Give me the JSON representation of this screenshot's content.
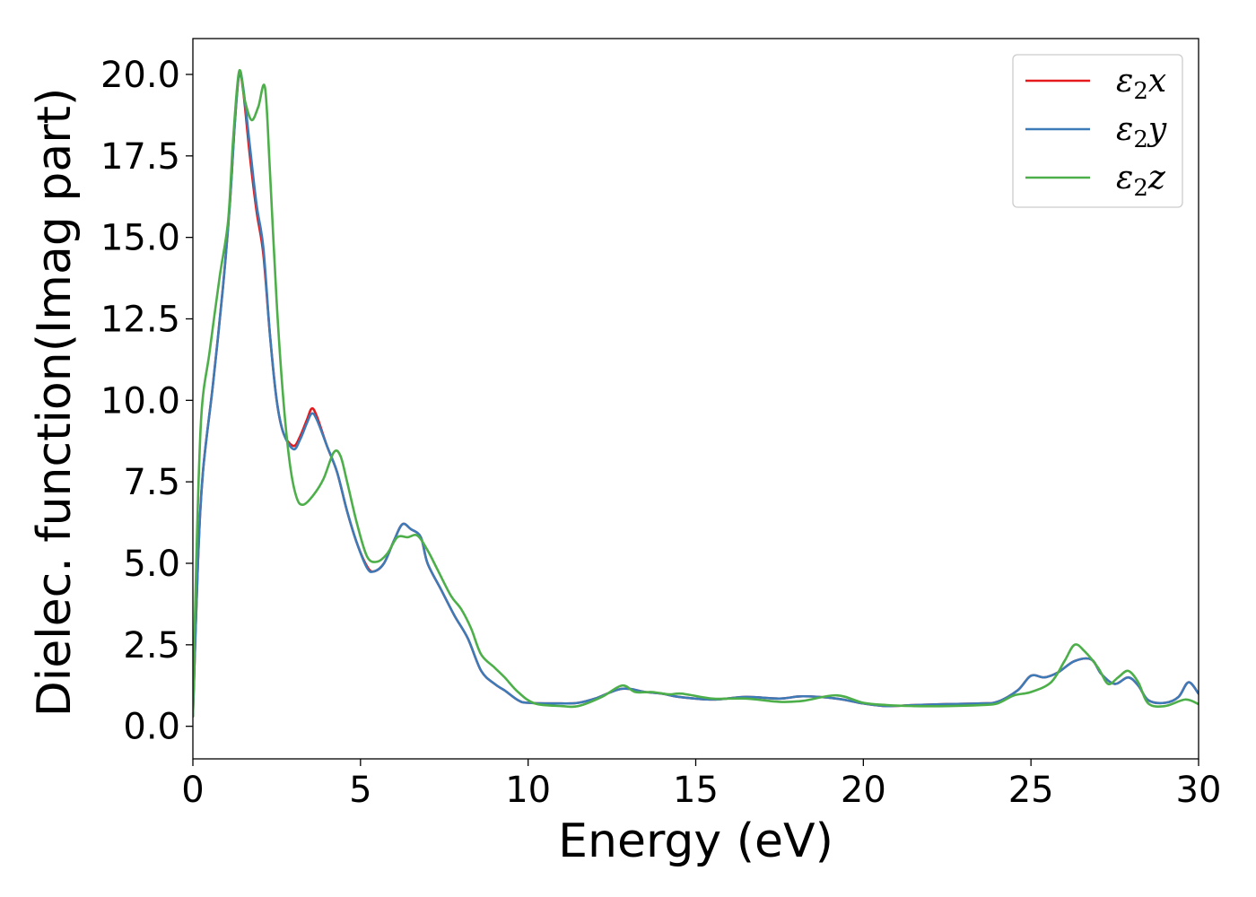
{
  "chart_data": {
    "type": "line",
    "xlabel": "Energy (eV)",
    "ylabel": "Dielec. function(Imag part)",
    "xlim": [
      0,
      30
    ],
    "ylim": [
      -1,
      21.1
    ],
    "xticks": [
      0,
      5,
      10,
      15,
      20,
      25,
      30
    ],
    "xtick_labels": [
      "0",
      "5",
      "10",
      "15",
      "20",
      "25",
      "30"
    ],
    "yticks": [
      0,
      2.5,
      5,
      7.5,
      10,
      12.5,
      15,
      17.5,
      20
    ],
    "ytick_labels": [
      "0.0",
      "2.5",
      "5.0",
      "7.5",
      "10.0",
      "12.5",
      "15.0",
      "17.5",
      "20.0"
    ],
    "grid": false,
    "legend_position": "top-right",
    "series": [
      {
        "name": "ε₂x",
        "legend_base": "ε",
        "legend_sub": "2",
        "legend_var": "x",
        "color": "#e41a1c",
        "points": [
          [
            0,
            0.3
          ],
          [
            0.15,
            5
          ],
          [
            0.3,
            7.8
          ],
          [
            0.6,
            10.5
          ],
          [
            0.9,
            13.5
          ],
          [
            1.1,
            16
          ],
          [
            1.25,
            18.5
          ],
          [
            1.38,
            20
          ],
          [
            1.5,
            19.5
          ],
          [
            1.7,
            17.5
          ],
          [
            1.9,
            15.8
          ],
          [
            2.1,
            14.5
          ],
          [
            2.3,
            12
          ],
          [
            2.5,
            10
          ],
          [
            2.7,
            9
          ],
          [
            3.0,
            8.6
          ],
          [
            3.2,
            8.9
          ],
          [
            3.4,
            9.4
          ],
          [
            3.55,
            9.75
          ],
          [
            3.7,
            9.5
          ],
          [
            4.0,
            8.6
          ],
          [
            4.3,
            7.8
          ],
          [
            4.6,
            6.6
          ],
          [
            4.9,
            5.6
          ],
          [
            5.2,
            4.9
          ],
          [
            5.4,
            4.75
          ],
          [
            5.7,
            5.0
          ],
          [
            6.0,
            5.7
          ],
          [
            6.25,
            6.2
          ],
          [
            6.5,
            6.05
          ],
          [
            6.8,
            5.8
          ],
          [
            7.0,
            5.0
          ],
          [
            7.4,
            4.2
          ],
          [
            7.8,
            3.4
          ],
          [
            8.2,
            2.7
          ],
          [
            8.6,
            1.7
          ],
          [
            9.0,
            1.3
          ],
          [
            9.3,
            1.1
          ],
          [
            9.7,
            0.8
          ],
          [
            10.0,
            0.72
          ],
          [
            11.0,
            0.7
          ],
          [
            11.5,
            0.72
          ],
          [
            12.0,
            0.85
          ],
          [
            12.8,
            1.15
          ],
          [
            13.5,
            1.05
          ],
          [
            14.0,
            1.0
          ],
          [
            14.5,
            0.9
          ],
          [
            15.5,
            0.82
          ],
          [
            16.5,
            0.9
          ],
          [
            17.5,
            0.85
          ],
          [
            18.2,
            0.92
          ],
          [
            19.2,
            0.85
          ],
          [
            20.0,
            0.7
          ],
          [
            20.7,
            0.62
          ],
          [
            21.5,
            0.65
          ],
          [
            22.5,
            0.68
          ],
          [
            23.5,
            0.7
          ],
          [
            24.0,
            0.75
          ],
          [
            24.6,
            1.1
          ],
          [
            25.0,
            1.55
          ],
          [
            25.4,
            1.5
          ],
          [
            25.8,
            1.65
          ],
          [
            26.3,
            2.0
          ],
          [
            26.8,
            2.05
          ],
          [
            27.1,
            1.6
          ],
          [
            27.5,
            1.3
          ],
          [
            27.9,
            1.5
          ],
          [
            28.2,
            1.25
          ],
          [
            28.5,
            0.8
          ],
          [
            29.0,
            0.72
          ],
          [
            29.4,
            0.9
          ],
          [
            29.7,
            1.35
          ],
          [
            30.0,
            1.0
          ]
        ]
      },
      {
        "name": "ε₂y",
        "legend_base": "ε",
        "legend_sub": "2",
        "legend_var": "y",
        "color": "#3d7bb8",
        "points": [
          [
            0,
            0.3
          ],
          [
            0.15,
            5
          ],
          [
            0.3,
            7.8
          ],
          [
            0.6,
            10.5
          ],
          [
            0.9,
            13.5
          ],
          [
            1.1,
            16
          ],
          [
            1.25,
            18.5
          ],
          [
            1.38,
            20.05
          ],
          [
            1.5,
            19.6
          ],
          [
            1.7,
            17.8
          ],
          [
            1.9,
            16.0
          ],
          [
            2.1,
            14.7
          ],
          [
            2.3,
            12
          ],
          [
            2.5,
            10
          ],
          [
            2.7,
            9
          ],
          [
            3.0,
            8.5
          ],
          [
            3.2,
            8.8
          ],
          [
            3.4,
            9.3
          ],
          [
            3.55,
            9.6
          ],
          [
            3.7,
            9.4
          ],
          [
            4.0,
            8.6
          ],
          [
            4.3,
            7.8
          ],
          [
            4.6,
            6.6
          ],
          [
            4.9,
            5.6
          ],
          [
            5.2,
            4.85
          ],
          [
            5.4,
            4.75
          ],
          [
            5.7,
            5.0
          ],
          [
            6.0,
            5.7
          ],
          [
            6.25,
            6.2
          ],
          [
            6.5,
            6.05
          ],
          [
            6.8,
            5.8
          ],
          [
            7.0,
            5.0
          ],
          [
            7.4,
            4.2
          ],
          [
            7.8,
            3.4
          ],
          [
            8.2,
            2.7
          ],
          [
            8.6,
            1.7
          ],
          [
            9.0,
            1.3
          ],
          [
            9.3,
            1.1
          ],
          [
            9.7,
            0.8
          ],
          [
            10.0,
            0.72
          ],
          [
            11.0,
            0.7
          ],
          [
            11.5,
            0.72
          ],
          [
            12.0,
            0.85
          ],
          [
            12.8,
            1.15
          ],
          [
            13.5,
            1.05
          ],
          [
            14.0,
            1.0
          ],
          [
            14.5,
            0.9
          ],
          [
            15.5,
            0.82
          ],
          [
            16.5,
            0.9
          ],
          [
            17.5,
            0.85
          ],
          [
            18.2,
            0.92
          ],
          [
            19.2,
            0.85
          ],
          [
            20.0,
            0.7
          ],
          [
            20.7,
            0.62
          ],
          [
            21.5,
            0.65
          ],
          [
            22.5,
            0.68
          ],
          [
            23.5,
            0.7
          ],
          [
            24.0,
            0.75
          ],
          [
            24.6,
            1.1
          ],
          [
            25.0,
            1.55
          ],
          [
            25.4,
            1.5
          ],
          [
            25.8,
            1.65
          ],
          [
            26.3,
            2.0
          ],
          [
            26.8,
            2.05
          ],
          [
            27.1,
            1.6
          ],
          [
            27.5,
            1.3
          ],
          [
            27.9,
            1.5
          ],
          [
            28.2,
            1.25
          ],
          [
            28.5,
            0.8
          ],
          [
            29.0,
            0.72
          ],
          [
            29.4,
            0.9
          ],
          [
            29.7,
            1.35
          ],
          [
            30.0,
            1.0
          ]
        ]
      },
      {
        "name": "ε₂z",
        "legend_base": "ε",
        "legend_sub": "2",
        "legend_var": "z",
        "color": "#4daf4a",
        "points": [
          [
            0,
            0.3
          ],
          [
            0.1,
            5
          ],
          [
            0.25,
            9.5
          ],
          [
            0.5,
            11.5
          ],
          [
            0.8,
            13.8
          ],
          [
            1.05,
            15.5
          ],
          [
            1.2,
            18
          ],
          [
            1.38,
            20.1
          ],
          [
            1.55,
            19.2
          ],
          [
            1.75,
            18.6
          ],
          [
            1.95,
            19.0
          ],
          [
            2.15,
            19.6
          ],
          [
            2.3,
            17
          ],
          [
            2.5,
            13
          ],
          [
            2.7,
            10
          ],
          [
            2.9,
            8
          ],
          [
            3.1,
            7.0
          ],
          [
            3.3,
            6.8
          ],
          [
            3.6,
            7.1
          ],
          [
            3.9,
            7.6
          ],
          [
            4.2,
            8.4
          ],
          [
            4.4,
            8.3
          ],
          [
            4.6,
            7.5
          ],
          [
            4.9,
            6.2
          ],
          [
            5.2,
            5.2
          ],
          [
            5.5,
            5.05
          ],
          [
            5.8,
            5.3
          ],
          [
            6.1,
            5.8
          ],
          [
            6.4,
            5.8
          ],
          [
            6.7,
            5.85
          ],
          [
            7.0,
            5.4
          ],
          [
            7.3,
            4.8
          ],
          [
            7.7,
            4.0
          ],
          [
            8.0,
            3.6
          ],
          [
            8.3,
            3.0
          ],
          [
            8.6,
            2.2
          ],
          [
            9.0,
            1.8
          ],
          [
            9.3,
            1.5
          ],
          [
            9.7,
            1.05
          ],
          [
            10.2,
            0.7
          ],
          [
            11.0,
            0.62
          ],
          [
            11.5,
            0.62
          ],
          [
            12.2,
            0.9
          ],
          [
            12.8,
            1.25
          ],
          [
            13.2,
            1.05
          ],
          [
            13.7,
            1.05
          ],
          [
            14.2,
            0.98
          ],
          [
            14.6,
            1.0
          ],
          [
            15.5,
            0.85
          ],
          [
            16.5,
            0.85
          ],
          [
            17.5,
            0.75
          ],
          [
            18.2,
            0.78
          ],
          [
            19.2,
            0.95
          ],
          [
            20.0,
            0.72
          ],
          [
            20.7,
            0.65
          ],
          [
            21.5,
            0.62
          ],
          [
            22.5,
            0.62
          ],
          [
            23.5,
            0.65
          ],
          [
            24.0,
            0.7
          ],
          [
            24.5,
            0.95
          ],
          [
            25.0,
            1.05
          ],
          [
            25.6,
            1.35
          ],
          [
            26.0,
            2.0
          ],
          [
            26.3,
            2.5
          ],
          [
            26.6,
            2.3
          ],
          [
            27.0,
            1.8
          ],
          [
            27.3,
            1.3
          ],
          [
            27.6,
            1.5
          ],
          [
            27.9,
            1.7
          ],
          [
            28.2,
            1.35
          ],
          [
            28.5,
            0.7
          ],
          [
            29.0,
            0.62
          ],
          [
            29.6,
            0.82
          ],
          [
            30.0,
            0.68
          ]
        ]
      }
    ]
  }
}
